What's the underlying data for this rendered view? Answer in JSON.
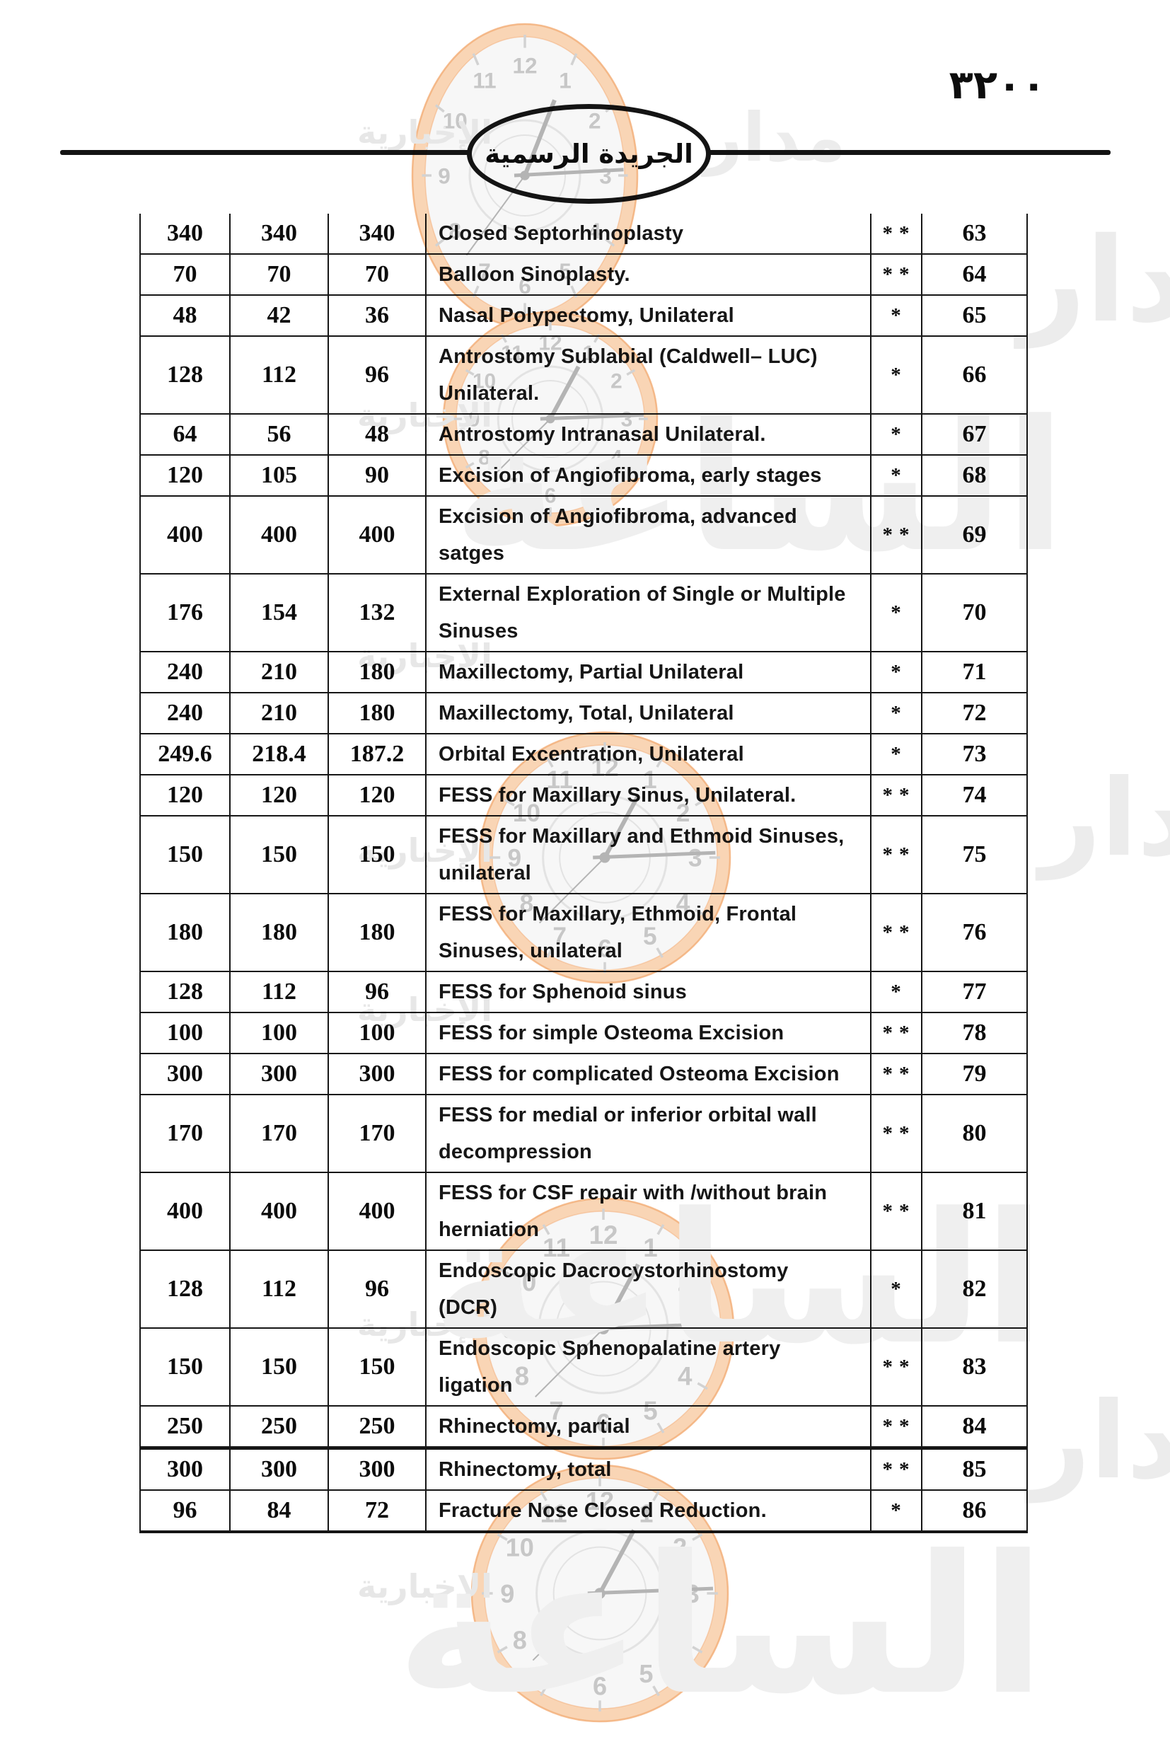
{
  "page": {
    "number_display": "٣٢٠٠",
    "header_title": "الجريدة الرسمية"
  },
  "watermark": {
    "agency_word": "الإخبارية",
    "brand_word_1": "مدار",
    "brand_word_2": "الساعة",
    "clock_numbers": [
      "12",
      "1",
      "2",
      "3",
      "4",
      "5",
      "6",
      "7",
      "8",
      "9",
      "10",
      "11"
    ],
    "colors": {
      "ring": "#f9d5b5",
      "ring_edge": "#f3ac75",
      "face": "#f7f7f7",
      "inner_ring": "#e3e3e3",
      "numeral": "#c7c7c7",
      "tick": "#d2d2d2",
      "hand": "#b4b4b4",
      "agency_text": "#e7e7e7",
      "brand_text": "#ececec",
      "giant_text": "#efefef"
    }
  },
  "table": {
    "column_roles": [
      "fee-tier-1",
      "fee-tier-2",
      "fee-tier-3",
      "procedure-description",
      "asterisk-class",
      "serial-number"
    ],
    "rows": [
      {
        "fees": [
          "340",
          "340",
          "340"
        ],
        "lines": [
          "Closed Septorhinoplasty"
        ],
        "stars": "**",
        "no": "63"
      },
      {
        "fees": [
          "70",
          "70",
          "70"
        ],
        "lines": [
          "Balloon Sinoplasty."
        ],
        "stars": "**",
        "no": "64"
      },
      {
        "fees": [
          "48",
          "42",
          "36"
        ],
        "lines": [
          "Nasal Polypectomy, Unilateral"
        ],
        "stars": "*",
        "no": "65"
      },
      {
        "fees": [
          "128",
          "112",
          "96"
        ],
        "lines": [
          "Antrostomy Sublabial (Caldwell– LUC)",
          "Unilateral."
        ],
        "stars": "*",
        "no": "66"
      },
      {
        "fees": [
          "64",
          "56",
          "48"
        ],
        "lines": [
          "Antrostomy Intranasal Unilateral."
        ],
        "stars": "*",
        "no": "67"
      },
      {
        "fees": [
          "120",
          "105",
          "90"
        ],
        "lines": [
          "Excision of Angiofibroma, early stages"
        ],
        "stars": "*",
        "no": "68"
      },
      {
        "fees": [
          "400",
          "400",
          "400"
        ],
        "lines": [
          "Excision of Angiofibroma, advanced",
          "satges"
        ],
        "stars": "**",
        "no": "69"
      },
      {
        "fees": [
          "176",
          "154",
          "132"
        ],
        "lines": [
          "External Exploration of Single or Multiple",
          "Sinuses"
        ],
        "stars": "*",
        "no": "70"
      },
      {
        "fees": [
          "240",
          "210",
          "180"
        ],
        "lines": [
          "Maxillectomy, Partial Unilateral"
        ],
        "stars": "*",
        "no": "71"
      },
      {
        "fees": [
          "240",
          "210",
          "180"
        ],
        "lines": [
          "Maxillectomy, Total, Unilateral"
        ],
        "stars": "*",
        "no": "72"
      },
      {
        "fees": [
          "249.6",
          "218.4",
          "187.2"
        ],
        "lines": [
          "Orbital Excentration, Unilateral"
        ],
        "stars": "*",
        "no": "73"
      },
      {
        "fees": [
          "120",
          "120",
          "120"
        ],
        "lines": [
          "FESS for Maxillary Sinus, Unilateral."
        ],
        "stars": "**",
        "no": "74"
      },
      {
        "fees": [
          "150",
          "150",
          "150"
        ],
        "lines": [
          "FESS for Maxillary and Ethmoid Sinuses,",
          "unilateral"
        ],
        "stars": "**",
        "no": "75"
      },
      {
        "fees": [
          "180",
          "180",
          "180"
        ],
        "lines": [
          "FESS for Maxillary, Ethmoid, Frontal",
          "Sinuses, unilateral"
        ],
        "stars": "**",
        "no": "76"
      },
      {
        "fees": [
          "128",
          "112",
          "96"
        ],
        "lines": [
          "FESS for Sphenoid sinus"
        ],
        "stars": "*",
        "no": "77"
      },
      {
        "fees": [
          "100",
          "100",
          "100"
        ],
        "lines": [
          "FESS for simple Osteoma Excision"
        ],
        "stars": "**",
        "no": "78"
      },
      {
        "fees": [
          "300",
          "300",
          "300"
        ],
        "lines": [
          "FESS for complicated Osteoma Excision"
        ],
        "stars": "**",
        "no": "79"
      },
      {
        "fees": [
          "170",
          "170",
          "170"
        ],
        "lines": [
          "FESS for medial or inferior orbital wall",
          "decompression"
        ],
        "stars": "**",
        "no": "80"
      },
      {
        "fees": [
          "400",
          "400",
          "400"
        ],
        "lines": [
          "FESS for CSF repair with /without brain",
          "herniation"
        ],
        "stars": "**",
        "no": "81"
      },
      {
        "fees": [
          "128",
          "112",
          "96"
        ],
        "lines": [
          "Endoscopic Dacrocystorhinostomy",
          "(DCR)"
        ],
        "stars": "*",
        "no": "82"
      },
      {
        "fees": [
          "150",
          "150",
          "150"
        ],
        "lines": [
          "Endoscopic Sphenopalatine artery",
          "ligation"
        ],
        "stars": "**",
        "no": "83"
      },
      {
        "fees": [
          "250",
          "250",
          "250"
        ],
        "lines": [
          "Rhinectomy, partial"
        ],
        "stars": "**",
        "no": "84"
      },
      {
        "fees": [
          "300",
          "300",
          "300"
        ],
        "lines": [
          "Rhinectomy, total"
        ],
        "stars": "**",
        "no": "85"
      },
      {
        "fees": [
          "96",
          "84",
          "72"
        ],
        "lines": [
          "Fracture Nose Closed Reduction."
        ],
        "stars": "*",
        "no": "86"
      }
    ]
  }
}
